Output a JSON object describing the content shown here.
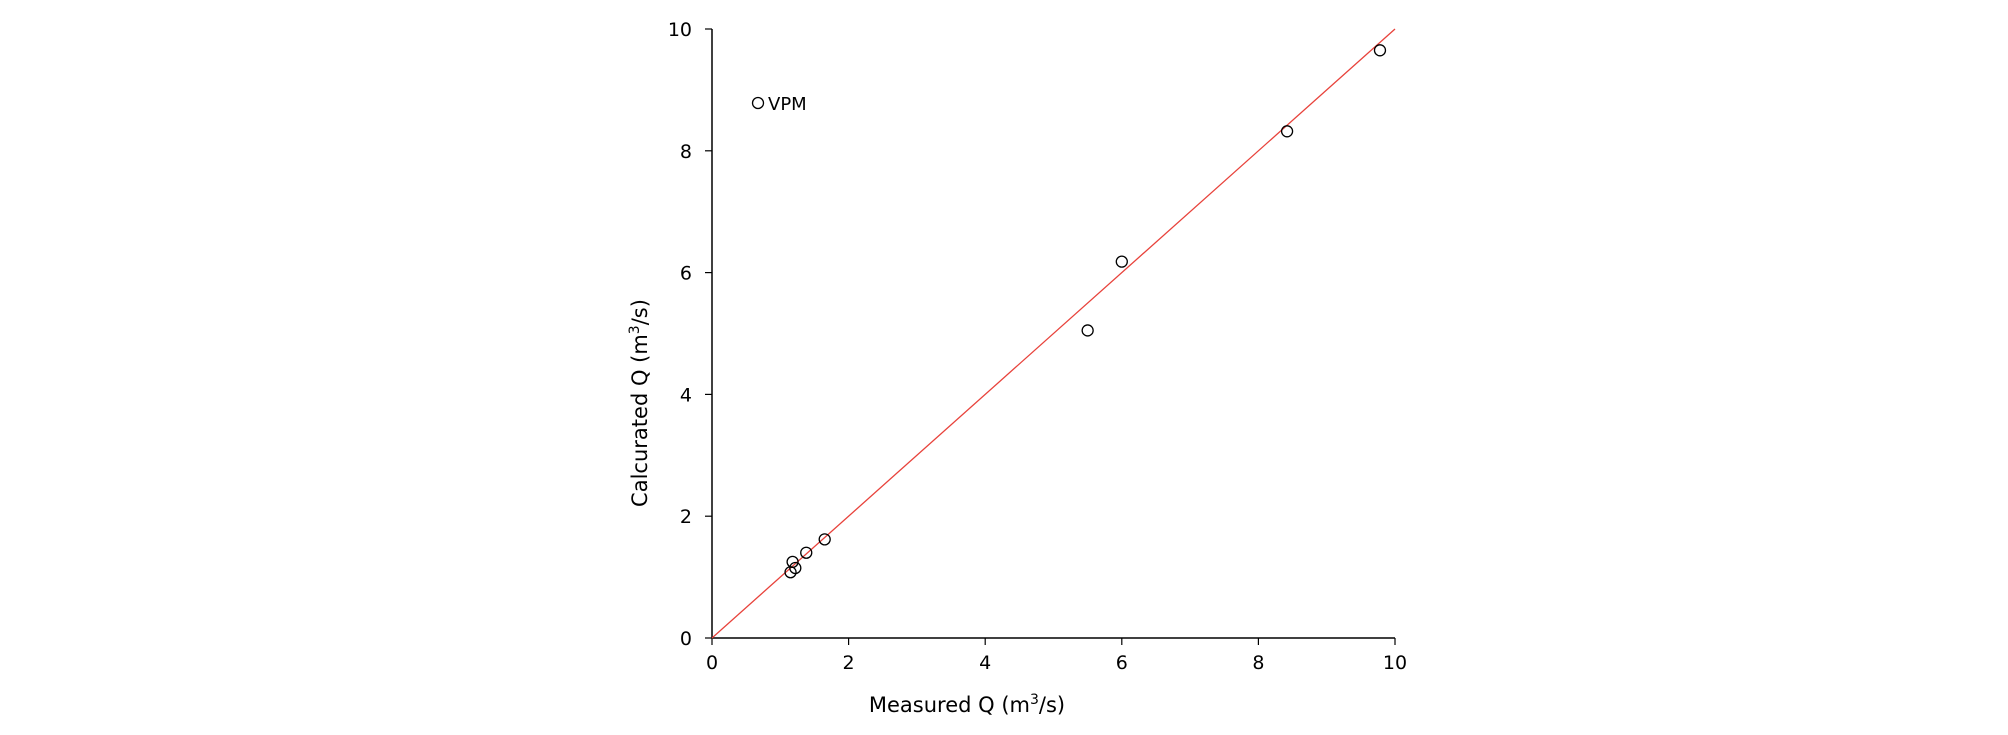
{
  "chart_data": {
    "type": "scatter",
    "title": "",
    "xlabel": "Measured Q (m3/s)",
    "ylabel": "Calcurated Q (m3/s)",
    "xlabel_parts": {
      "pre": "Measured Q (m",
      "sup": "3",
      "post": "/s)"
    },
    "ylabel_parts": {
      "pre": "Calcurated Q (m",
      "sup": "3",
      "post": "/s)"
    },
    "xlim": [
      0,
      10
    ],
    "ylim": [
      0,
      10
    ],
    "xticks": [
      0,
      2,
      4,
      6,
      8,
      10
    ],
    "yticks": [
      0,
      2,
      4,
      6,
      8,
      10
    ],
    "grid": false,
    "legend_position": "top-left",
    "reference_line": {
      "x": [
        0,
        10
      ],
      "y": [
        0,
        10
      ],
      "color": "#e8423b"
    },
    "series": [
      {
        "name": "VPM",
        "marker": "open-circle",
        "color": "#000000",
        "x": [
          1.15,
          1.18,
          1.22,
          1.38,
          1.65,
          5.5,
          6.0,
          8.42,
          9.78
        ],
        "y": [
          1.08,
          1.25,
          1.15,
          1.4,
          1.62,
          5.05,
          6.18,
          8.32,
          9.65
        ]
      }
    ]
  }
}
